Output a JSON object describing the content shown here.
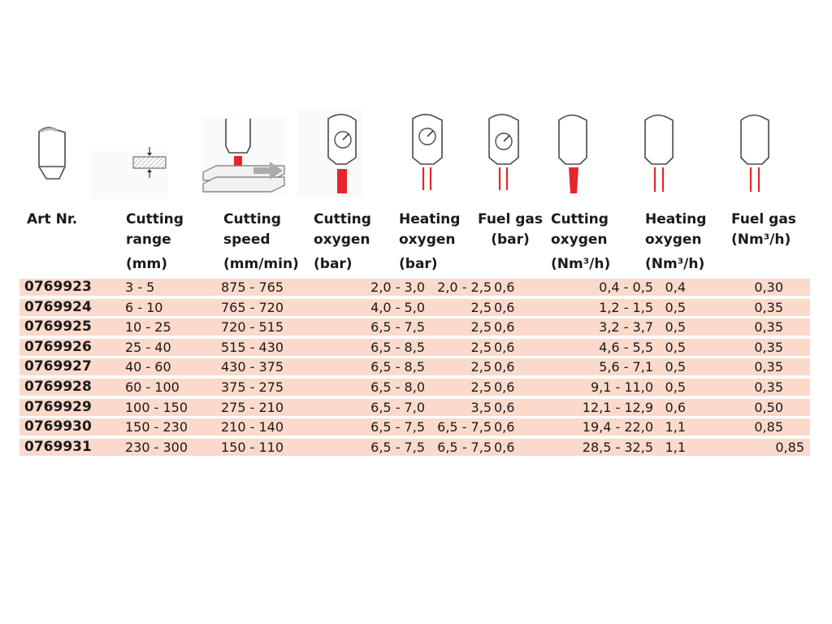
{
  "headers": [
    {
      "line1": "Art Nr.",
      "line2": "",
      "unit": ""
    },
    {
      "line1": "Cutting",
      "line2": "range",
      "unit": "(mm)"
    },
    {
      "line1": "Cutting",
      "line2": "speed",
      "unit": "(mm/min)"
    },
    {
      "line1": "Cutting",
      "line2": "oxygen",
      "unit": "(bar)"
    },
    {
      "line1": "Heating",
      "line2": "oxygen",
      "unit": "(bar)"
    },
    {
      "line1": "Fuel gas",
      "line2": "(bar)",
      "unit": ""
    },
    {
      "line1": "Cutting",
      "line2": "oxygen",
      "unit": "(Nm³/h)"
    },
    {
      "line1": "Heating",
      "line2": "oxygen",
      "unit": "(Nm³/h)"
    },
    {
      "line1": "Fuel gas",
      "line2": "(Nm³/h)",
      "unit": ""
    }
  ],
  "rows": [
    [
      "0769923",
      "3 - 5",
      "875 - 765",
      "2,0 - 3,0",
      "2,0 - 2,5",
      "0,6",
      "0,4 - 0,5",
      "0,4",
      "0,30"
    ],
    [
      "0769924",
      "6 - 10",
      "765 - 720",
      "4,0 - 5,0",
      "2,5",
      "0,6",
      "1,2 - 1,5",
      "0,5",
      "0,35"
    ],
    [
      "0769925",
      "10 - 25",
      "720 - 515",
      "6,5 - 7,5",
      "2,5",
      "0,6",
      "3,2 - 3,7",
      "0,5",
      "0,35"
    ],
    [
      "0769926",
      "25 - 40",
      "515 - 430",
      "6,5 - 8,5",
      "2,5",
      "0,6",
      "4,6 - 5,5",
      "0,5",
      "0,35"
    ],
    [
      "0769927",
      "40 - 60",
      "430 - 375",
      "6,5 - 8,5",
      "2,5",
      "0,6",
      "5,6 - 7,1",
      "0,5",
      "0,35"
    ],
    [
      "0769928",
      "60 - 100",
      "375 - 275",
      "6,5 - 8,0",
      "2,5",
      "0,6",
      "9,1 - 11,0",
      "0,5",
      "0,35"
    ],
    [
      "0769929",
      "100 - 150",
      "275 - 210",
      "6,5 - 7,0",
      "3,5",
      "0,6",
      "12,1 - 12,9",
      "0,6",
      "0,50"
    ],
    [
      "0769930",
      "150 - 230",
      "210 - 140",
      "6,5 - 7,5",
      "6,5 - 7,5",
      "0,6",
      "19,4 - 22,0",
      "1,1",
      "0,85"
    ],
    [
      "0769931",
      "230 - 300",
      "150 - 110",
      "6,5 - 7,5",
      "6,5 - 7,5",
      "0,6",
      "28,5 - 32,5",
      "1,1",
      "0,85"
    ]
  ],
  "colors": {
    "row_background": "#fbd9cb",
    "flame_red": "#e4262b",
    "outline": "#4a4a4a"
  },
  "icons": [
    "nozzle-tip-icon",
    "material-thickness-icon",
    "cutting-speed-icon",
    "cutting-oxygen-pressure-icon",
    "heating-oxygen-pressure-icon",
    "fuel-gas-pressure-icon",
    "cutting-oxygen-flow-icon",
    "heating-oxygen-flow-icon",
    "fuel-gas-flow-icon"
  ]
}
